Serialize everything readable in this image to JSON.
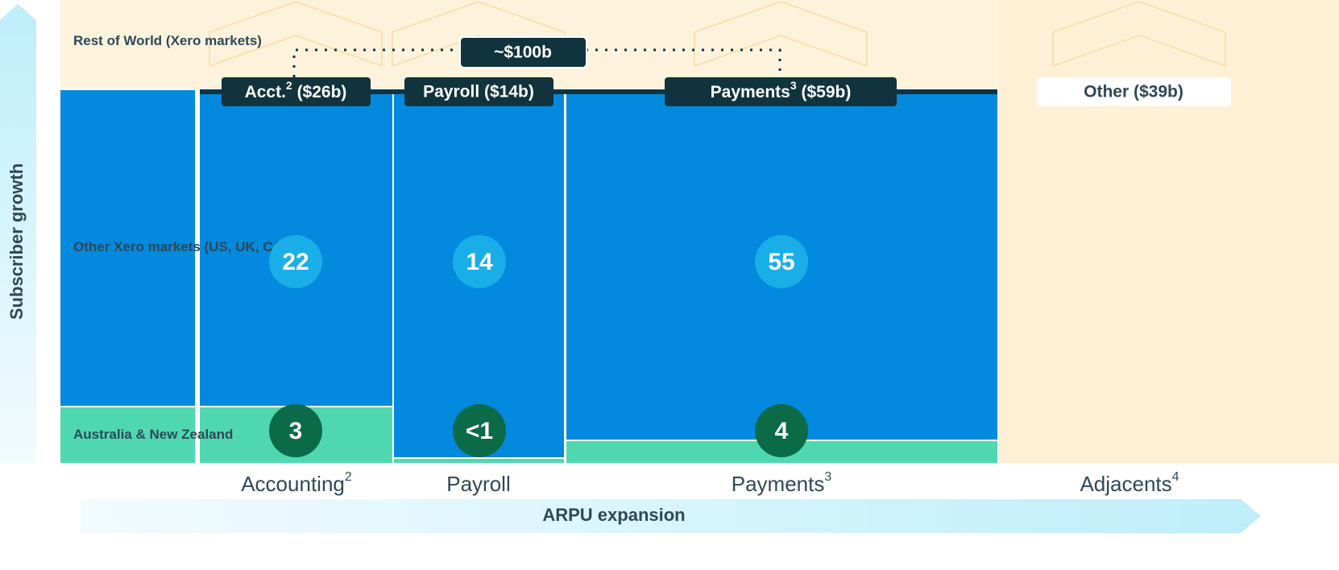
{
  "axes": {
    "y": "Subscriber growth",
    "x": "ARPU expansion"
  },
  "rows": [
    "Rest of World (Xero markets)",
    "Other Xero markets (US, UK, CA)",
    "Australia & New Zealand"
  ],
  "columns": [
    {
      "text": "Accounting",
      "note": "2"
    },
    {
      "text": "Payroll"
    },
    {
      "text": "Payments",
      "note": "3"
    },
    {
      "text": "Adjacents",
      "note": "4"
    }
  ],
  "tags": [
    {
      "text": "Acct.",
      "note": "2",
      "value": "($26b)"
    },
    {
      "text": "Payroll ($14b)"
    },
    {
      "text": "Payments",
      "note": "3",
      "value": "($59b)"
    },
    {
      "text": "Other ($39b)"
    }
  ],
  "total": "~$100b",
  "bubbles": {
    "other_markets": [
      "22",
      "14",
      "55"
    ],
    "anz": [
      "3",
      "<1",
      "4"
    ]
  }
}
